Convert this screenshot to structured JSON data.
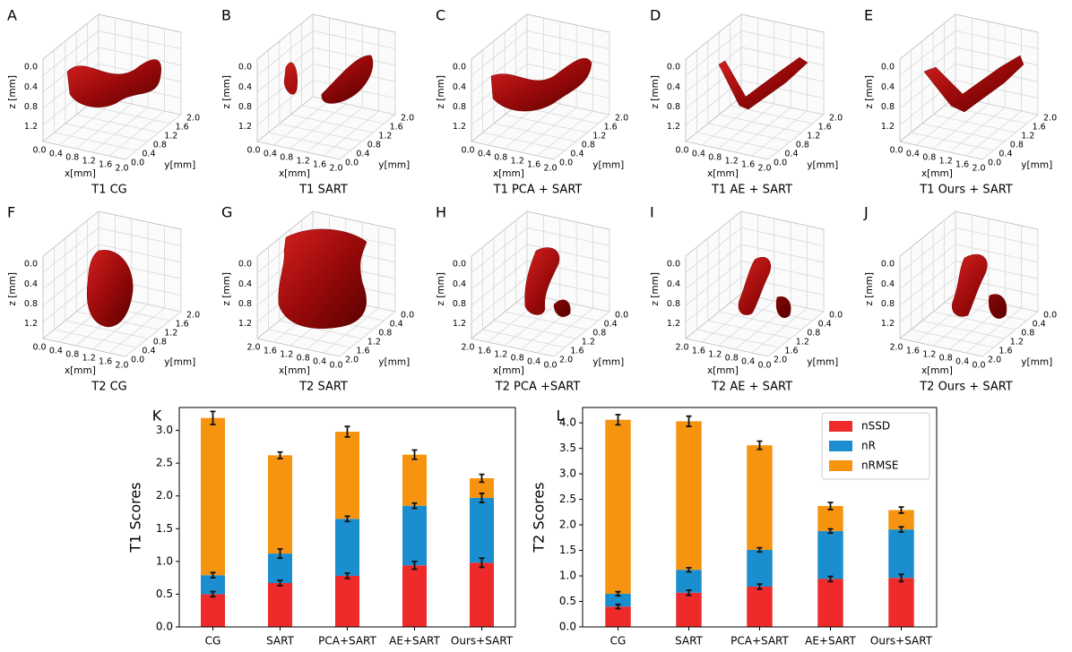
{
  "panels": [
    {
      "letter": "A",
      "caption": "T1 CG",
      "reversed": false
    },
    {
      "letter": "B",
      "caption": "T1 SART",
      "reversed": false
    },
    {
      "letter": "C",
      "caption": "T1 PCA + SART",
      "reversed": false
    },
    {
      "letter": "D",
      "caption": "T1 AE + SART",
      "reversed": false
    },
    {
      "letter": "E",
      "caption": "T1 Ours + SART",
      "reversed": false
    },
    {
      "letter": "F",
      "caption": "T2 CG",
      "reversed": false
    },
    {
      "letter": "G",
      "caption": "T2 SART",
      "reversed": true
    },
    {
      "letter": "H",
      "caption": "T2 PCA +SART",
      "reversed": true
    },
    {
      "letter": "I",
      "caption": "T2 AE + SART",
      "reversed": true
    },
    {
      "letter": "J",
      "caption": "T2 Ours + SART",
      "reversed": true
    }
  ],
  "axes3d": {
    "x_label": "x[mm]",
    "y_label": "y[mm]",
    "z_label": "z [mm]",
    "xticks": [
      "0.0",
      "0.4",
      "0.8",
      "1.2",
      "1.6",
      "2.0"
    ],
    "yticks": [
      "0.0",
      "0.4",
      "0.8",
      "1.2",
      "1.6",
      "2.0"
    ],
    "zticks": [
      "0.0",
      "0.4",
      "0.8",
      "1.2"
    ]
  },
  "chart_data": [
    {
      "type": "bar",
      "stacked": true,
      "letter": "K",
      "y_label": "T1 Scores",
      "categories": [
        "CG",
        "SART",
        "PCA+SART",
        "AE+SART",
        "Ours+SART"
      ],
      "series": [
        {
          "name": "nSSD",
          "color": "#ee2a2a",
          "values": [
            0.5,
            0.67,
            0.78,
            0.94,
            0.98
          ],
          "errors": [
            0.04,
            0.04,
            0.04,
            0.06,
            0.07
          ]
        },
        {
          "name": "nR",
          "color": "#1b8ecf",
          "values": [
            0.29,
            0.45,
            0.87,
            0.91,
            0.99
          ],
          "errors": [
            0.04,
            0.07,
            0.04,
            0.04,
            0.07
          ]
        },
        {
          "name": "nRMSE",
          "color": "#f7940f",
          "values": [
            2.4,
            1.5,
            1.33,
            0.78,
            0.3
          ],
          "errors": [
            0.1,
            0.05,
            0.08,
            0.07,
            0.06
          ]
        }
      ],
      "ylim": [
        0,
        3.35
      ],
      "yticks": [
        {
          "value": 0,
          "label": "0.0"
        },
        {
          "value": 0.5,
          "label": "0.5"
        },
        {
          "value": 1,
          "label": "1.0"
        },
        {
          "value": 1.5,
          "label": "1.5"
        },
        {
          "value": 2,
          "label": "2.0"
        },
        {
          "value": 2.5,
          "label": "2.5"
        },
        {
          "value": 3,
          "label": "3.0"
        }
      ]
    },
    {
      "type": "bar",
      "stacked": true,
      "letter": "L",
      "y_label": "T2 Scores",
      "legend": "upper right",
      "categories": [
        "CG",
        "SART",
        "PCA+SART",
        "AE+SART",
        "Ours+SART"
      ],
      "series": [
        {
          "name": "nSSD",
          "color": "#ee2a2a",
          "values": [
            0.4,
            0.67,
            0.79,
            0.94,
            0.96
          ],
          "errors": [
            0.04,
            0.05,
            0.05,
            0.05,
            0.07
          ]
        },
        {
          "name": "nR",
          "color": "#1b8ecf",
          "values": [
            0.25,
            0.45,
            0.72,
            0.94,
            0.95
          ],
          "errors": [
            0.04,
            0.04,
            0.04,
            0.04,
            0.05
          ]
        },
        {
          "name": "nRMSE",
          "color": "#f7940f",
          "values": [
            3.41,
            2.91,
            2.05,
            0.49,
            0.38
          ],
          "errors": [
            0.1,
            0.1,
            0.08,
            0.07,
            0.06
          ]
        }
      ],
      "ylim": [
        0,
        4.3
      ],
      "yticks": [
        {
          "value": 0,
          "label": "0.0"
        },
        {
          "value": 0.5,
          "label": "0.5"
        },
        {
          "value": 1,
          "label": "1.0"
        },
        {
          "value": 1.5,
          "label": "1.5"
        },
        {
          "value": 2,
          "label": "2.0"
        },
        {
          "value": 2.5,
          "label": "2.5"
        },
        {
          "value": 3,
          "label": "3.0"
        },
        {
          "value": 3.5,
          "label": "3.5"
        },
        {
          "value": 4,
          "label": "4.0"
        }
      ]
    }
  ]
}
